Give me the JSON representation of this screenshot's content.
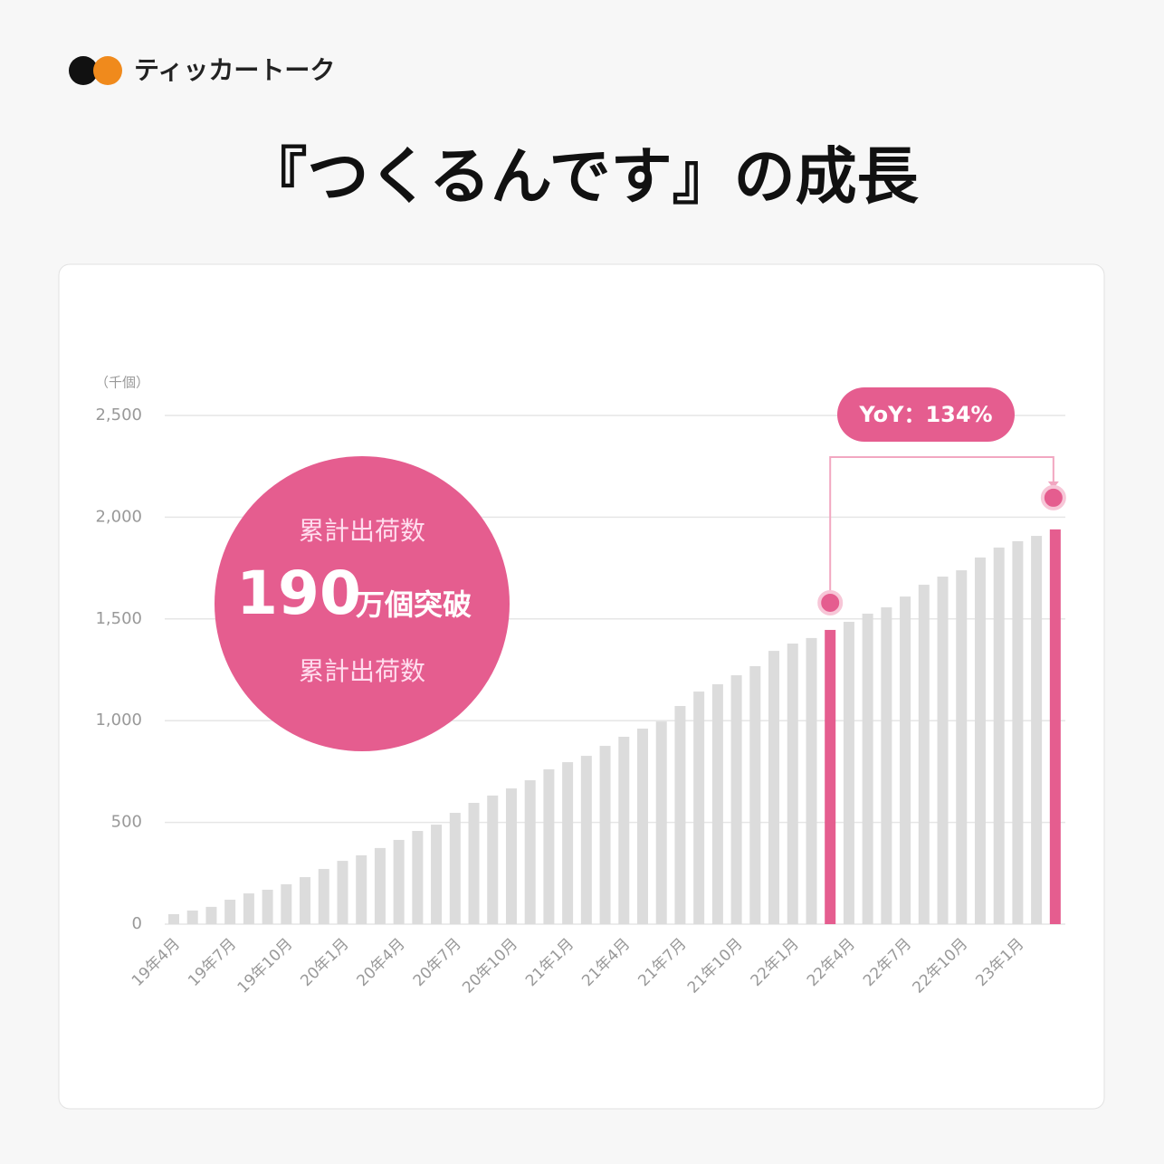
{
  "brand": "ティッカートーク",
  "chart_data": {
    "type": "bar",
    "title": "『つくるんです』の成長",
    "y_unit": "（千個）",
    "callout": {
      "top": "累計出荷数",
      "number": "190",
      "suffix": "万個突破",
      "bottom": "累計出荷数"
    },
    "badge": "YoY：134%",
    "categories": [
      "19年4月",
      null,
      null,
      "19年7月",
      null,
      null,
      "19年10月",
      null,
      null,
      "20年1月",
      null,
      null,
      "20年4月",
      null,
      null,
      "20年7月",
      null,
      null,
      "20年10月",
      null,
      null,
      "21年1月",
      null,
      null,
      "21年4月",
      null,
      null,
      "21年7月",
      null,
      null,
      "21年10月",
      null,
      null,
      "22年1月",
      null,
      null,
      "22年4月",
      null,
      null,
      "22年7月",
      null,
      null,
      "22年10月",
      null,
      null,
      "23年1月",
      null,
      null
    ],
    "values": [
      49,
      67,
      85,
      120,
      151,
      169,
      196,
      231,
      271,
      311,
      338,
      374,
      414,
      458,
      489,
      547,
      596,
      632,
      667,
      707,
      761,
      796,
      827,
      876,
      921,
      961,
      996,
      1072,
      1143,
      1179,
      1223,
      1268,
      1343,
      1379,
      1406,
      1446,
      1486,
      1526,
      1557,
      1610,
      1668,
      1708,
      1739,
      1802,
      1851,
      1882,
      1908,
      1940
    ],
    "colors": [
      "#dcdcdc",
      "#dcdcdc",
      "#dcdcdc",
      "#dcdcdc",
      "#dcdcdc",
      "#dcdcdc",
      "#dcdcdc",
      "#dcdcdc",
      "#dcdcdc",
      "#dcdcdc",
      "#dcdcdc",
      "#dcdcdc",
      "#dcdcdc",
      "#dcdcdc",
      "#dcdcdc",
      "#dcdcdc",
      "#dcdcdc",
      "#dcdcdc",
      "#dcdcdc",
      "#dcdcdc",
      "#dcdcdc",
      "#dcdcdc",
      "#dcdcdc",
      "#dcdcdc",
      "#dcdcdc",
      "#dcdcdc",
      "#dcdcdc",
      "#dcdcdc",
      "#dcdcdc",
      "#dcdcdc",
      "#dcdcdc",
      "#dcdcdc",
      "#dcdcdc",
      "#dcdcdc",
      "#dcdcdc",
      "#e55d8f",
      "#dcdcdc",
      "#dcdcdc",
      "#dcdcdc",
      "#dcdcdc",
      "#dcdcdc",
      "#dcdcdc",
      "#dcdcdc",
      "#dcdcdc",
      "#dcdcdc",
      "#dcdcdc",
      "#dcdcdc",
      "#e55d8f"
    ],
    "ylim": [
      0,
      2500
    ],
    "yticks": [
      0,
      500,
      {
        "value": 1000,
        "label": "1,000"
      },
      {
        "value": 1500,
        "label": "1,500"
      },
      {
        "value": 2000,
        "label": "2,000"
      },
      {
        "value": 2500,
        "label": "2,500"
      }
    ],
    "grid": true
  }
}
